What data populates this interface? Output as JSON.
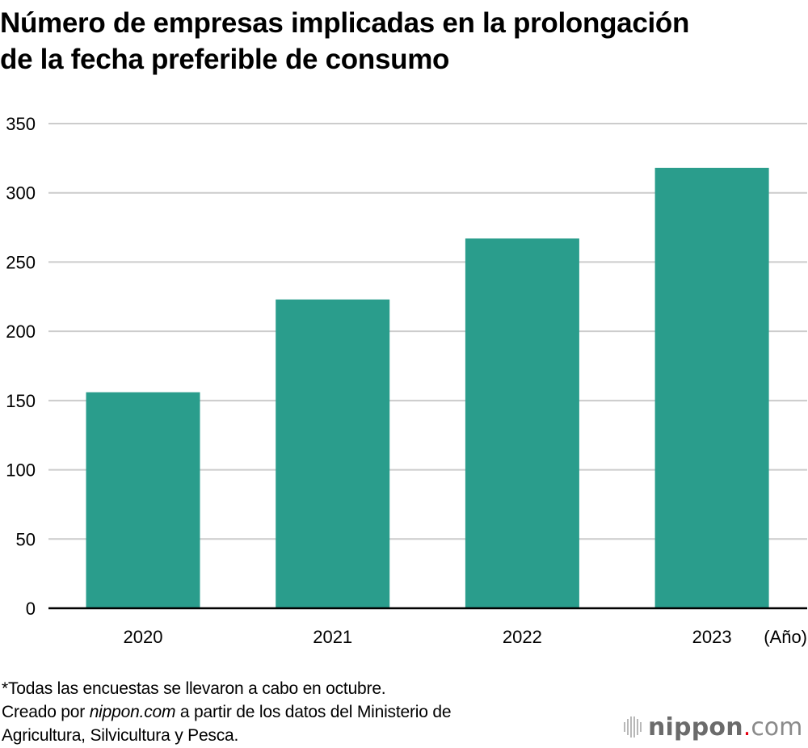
{
  "chart_data": {
    "type": "bar",
    "title": "Número de empresas implicadas en la prolongación de la fecha preferible de consumo",
    "title_lines": [
      "Número de empresas implicadas en la prolongación",
      "de la fecha preferible de consumo"
    ],
    "categories": [
      "2020",
      "2021",
      "2022",
      "2023"
    ],
    "values": [
      156,
      223,
      267,
      318
    ],
    "xlabel": "(Año)",
    "ylabel": "",
    "ylim": [
      0,
      350
    ],
    "yticks": [
      0,
      50,
      100,
      150,
      200,
      250,
      300,
      350
    ],
    "ytick_labels": [
      "0",
      "50",
      "100",
      "150",
      "200",
      "250",
      "300",
      "350"
    ],
    "grid": true,
    "legend": "none",
    "bar_color": "#2a9d8c",
    "grid_color": "#cccccc",
    "axis_color": "#000000"
  },
  "footnote": {
    "line1": "*Todas las encuestas se llevaron a cabo en octubre.",
    "line2_prefix": "Creado por ",
    "line2_italic": "nippon.com",
    "line2_suffix": " a partir de los datos del Ministerio de",
    "line3": "Agricultura, Silvicultura y Pesca."
  },
  "logo": {
    "icon": "sound-bars-icon",
    "name": "nippon",
    "dot": ".",
    "tld": "com",
    "accent_color": "#e60012"
  }
}
